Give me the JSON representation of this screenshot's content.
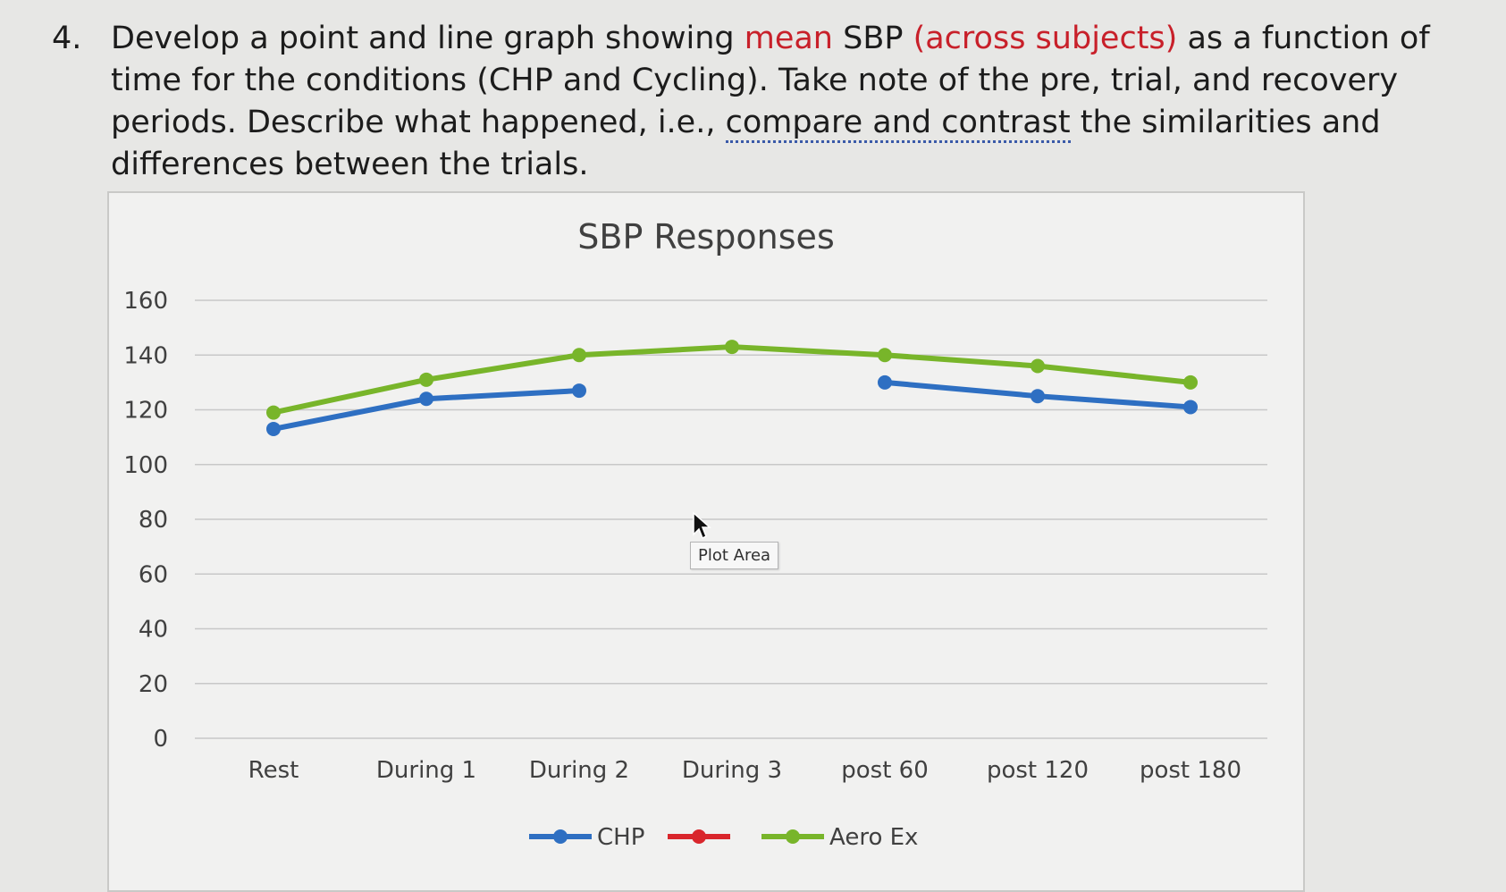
{
  "question": {
    "number": "4.",
    "part1": "Develop a point and line graph showing ",
    "highlight1": "mean",
    "part2": " SBP ",
    "highlight2": "(across subjects)",
    "part3": " as a function of time for the conditions (CHP and Cycling). Take note of the pre, trial, and recovery periods. Describe what happened, i.e., ",
    "dotted": "compare and contrast",
    "part4": " the similarities and differences between the trials."
  },
  "tooltip": "Plot Area",
  "colors": {
    "chp": "#2e6fc2",
    "red_series": "#d9262c",
    "aero": "#78b52a",
    "grid": "#c8c8c8"
  },
  "chart_data": {
    "type": "line",
    "title": "SBP Responses",
    "categories": [
      "Rest",
      "During 1",
      "During 2",
      "During 3",
      "post 60",
      "post 120",
      "post 180"
    ],
    "yticks": [
      "0",
      "20",
      "40",
      "60",
      "80",
      "100",
      "120",
      "140",
      "160"
    ],
    "ylim": [
      0,
      160
    ],
    "grid": true,
    "legend_position": "bottom",
    "series": [
      {
        "name": "CHP",
        "values": [
          113,
          124,
          127,
          null,
          130,
          125,
          121
        ]
      },
      {
        "name": "",
        "values": [
          null,
          null,
          null,
          null,
          null,
          null,
          null
        ]
      },
      {
        "name": "Aero Ex",
        "values": [
          119,
          131,
          140,
          143,
          140,
          136,
          130
        ]
      }
    ]
  }
}
